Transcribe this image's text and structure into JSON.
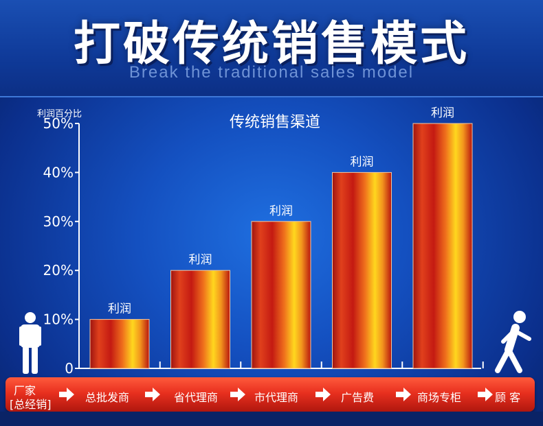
{
  "header": {
    "title": "打破传统销售模式",
    "subtitle": "Break the traditional sales model"
  },
  "chart_data": {
    "type": "bar",
    "title": "传统销售渠道",
    "ylabel": "利润百分比",
    "ytick_labels": [
      "0",
      "10%",
      "20%",
      "30%",
      "40%",
      "50%"
    ],
    "ylim": [
      0,
      50
    ],
    "categories": [
      "总批发商",
      "省代理商",
      "市代理商",
      "广告费",
      "商场专柜"
    ],
    "values": [
      10,
      20,
      30,
      40,
      50
    ],
    "bar_label": "利润",
    "colors": {
      "bar_red": "#c41a12",
      "bar_orange": "#ef6f1c",
      "bar_yellow": "#ffd71e"
    }
  },
  "flow": {
    "start_line1": "厂家",
    "start_line2": "[总经销]",
    "steps": [
      "总批发商",
      "省代理商",
      "市代理商",
      "广告费",
      "商场专柜"
    ],
    "end": "顾 客"
  },
  "icons": {
    "start": "standing-person-icon",
    "end": "walking-person-icon",
    "arrow": "right-arrow-icon"
  }
}
